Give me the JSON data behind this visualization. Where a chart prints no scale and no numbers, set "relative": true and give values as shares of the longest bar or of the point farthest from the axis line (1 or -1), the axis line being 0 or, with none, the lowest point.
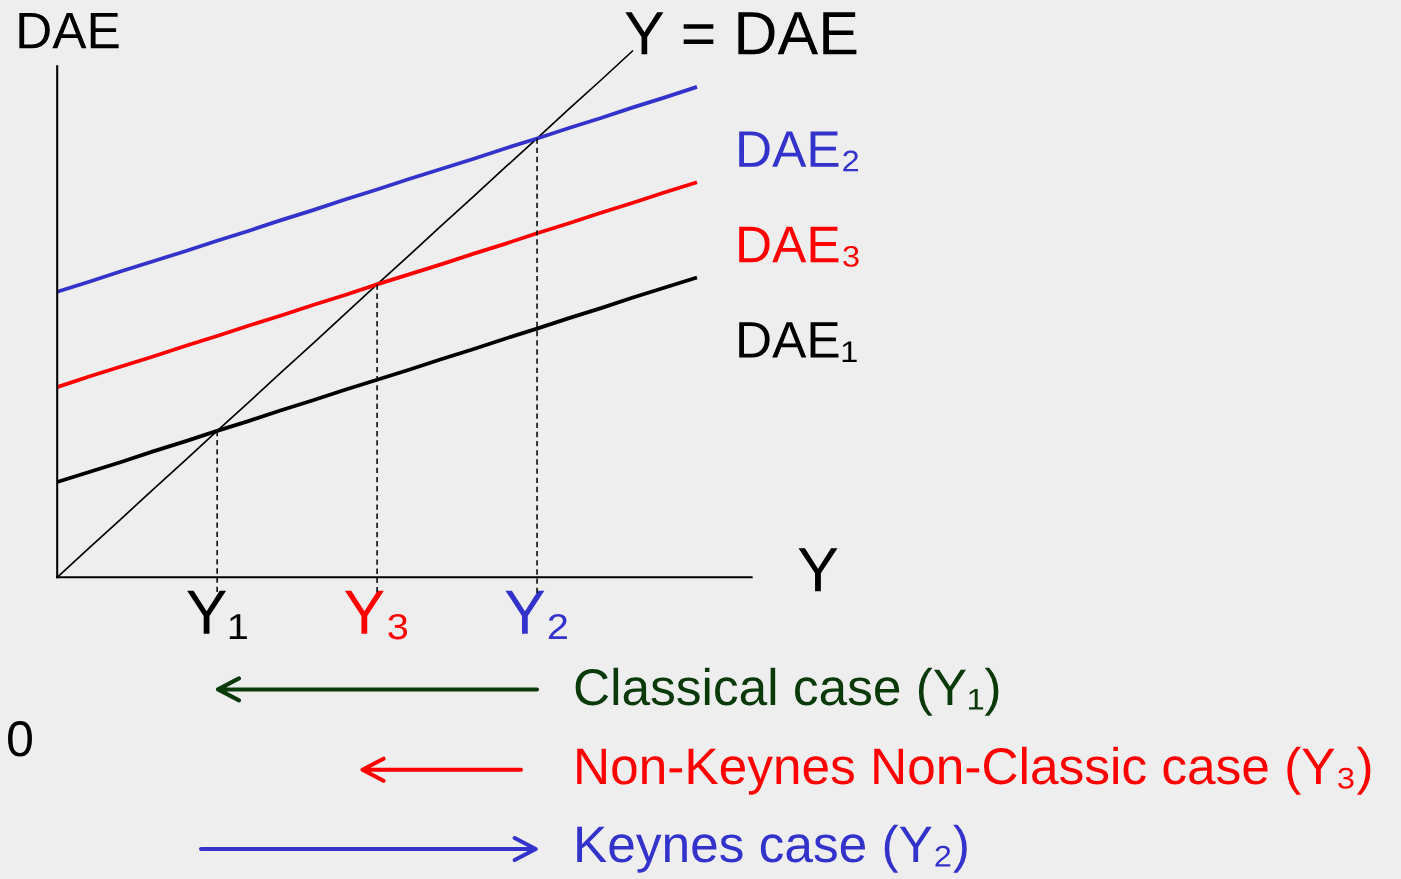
{
  "chart_data": {
    "type": "line",
    "relative": true,
    "xlabel": "Y",
    "ylabel": "DAE",
    "tick_labels": "x",
    "categories": [
      null,
      null,
      null,
      null,
      null,
      "Y₁",
      null,
      null,
      null,
      null,
      "Y₃",
      null,
      null,
      null,
      null,
      "Y₂",
      null,
      null,
      null,
      null,
      null
    ],
    "annotations": [
      "Classical case (Y₁)",
      "Non-Keynes Non-Classic case (Y₃)",
      "Keynes case (Y₂)",
      "0"
    ],
    "series": [
      {
        "name": "Y = DAE",
        "color": "#000000",
        "values": [
          0,
          0.056,
          0.111,
          0.167,
          0.222,
          0.278,
          0.333,
          0.389,
          0.444,
          0.5,
          0.556,
          0.611,
          0.667,
          0.722,
          0.778,
          0.833,
          0.889,
          0.944,
          1,
          null,
          null
        ]
      },
      {
        "name": "DAE₁",
        "color": "#000000",
        "values": [
          0.181,
          0.2,
          0.219,
          0.239,
          0.258,
          0.278,
          0.297,
          0.317,
          0.336,
          0.356,
          0.375,
          0.394,
          0.414,
          0.433,
          0.453,
          0.472,
          0.492,
          0.511,
          0.531,
          0.55,
          0.569
        ]
      },
      {
        "name": "DAE₃",
        "color": "#ff0000",
        "values": [
          0.361,
          0.381,
          0.4,
          0.419,
          0.439,
          0.458,
          0.478,
          0.497,
          0.517,
          0.536,
          0.556,
          0.575,
          0.594,
          0.614,
          0.633,
          0.653,
          0.672,
          0.692,
          0.711,
          0.731,
          0.75
        ]
      },
      {
        "name": "DAE₂",
        "color": "#3333cc",
        "values": [
          0.542,
          0.561,
          0.581,
          0.6,
          0.619,
          0.639,
          0.658,
          0.678,
          0.697,
          0.717,
          0.736,
          0.756,
          0.775,
          0.794,
          0.814,
          0.833,
          0.853,
          0.872,
          0.892,
          0.911,
          0.931
        ]
      },
      {
        "color": "#000000",
        "line_style": "dashed",
        "x": [
          "Y₁",
          "Y₁"
        ],
        "values": [
          0.278,
          -0.03
        ]
      },
      {
        "color": "#000000",
        "line_style": "dashed",
        "x": [
          "Y₃",
          "Y₃"
        ],
        "values": [
          0.556,
          -0.03
        ]
      },
      {
        "color": "#000000",
        "line_style": "dashed",
        "x": [
          "Y₂",
          "Y₂"
        ],
        "values": [
          0.833,
          -0.03
        ]
      }
    ]
  }
}
